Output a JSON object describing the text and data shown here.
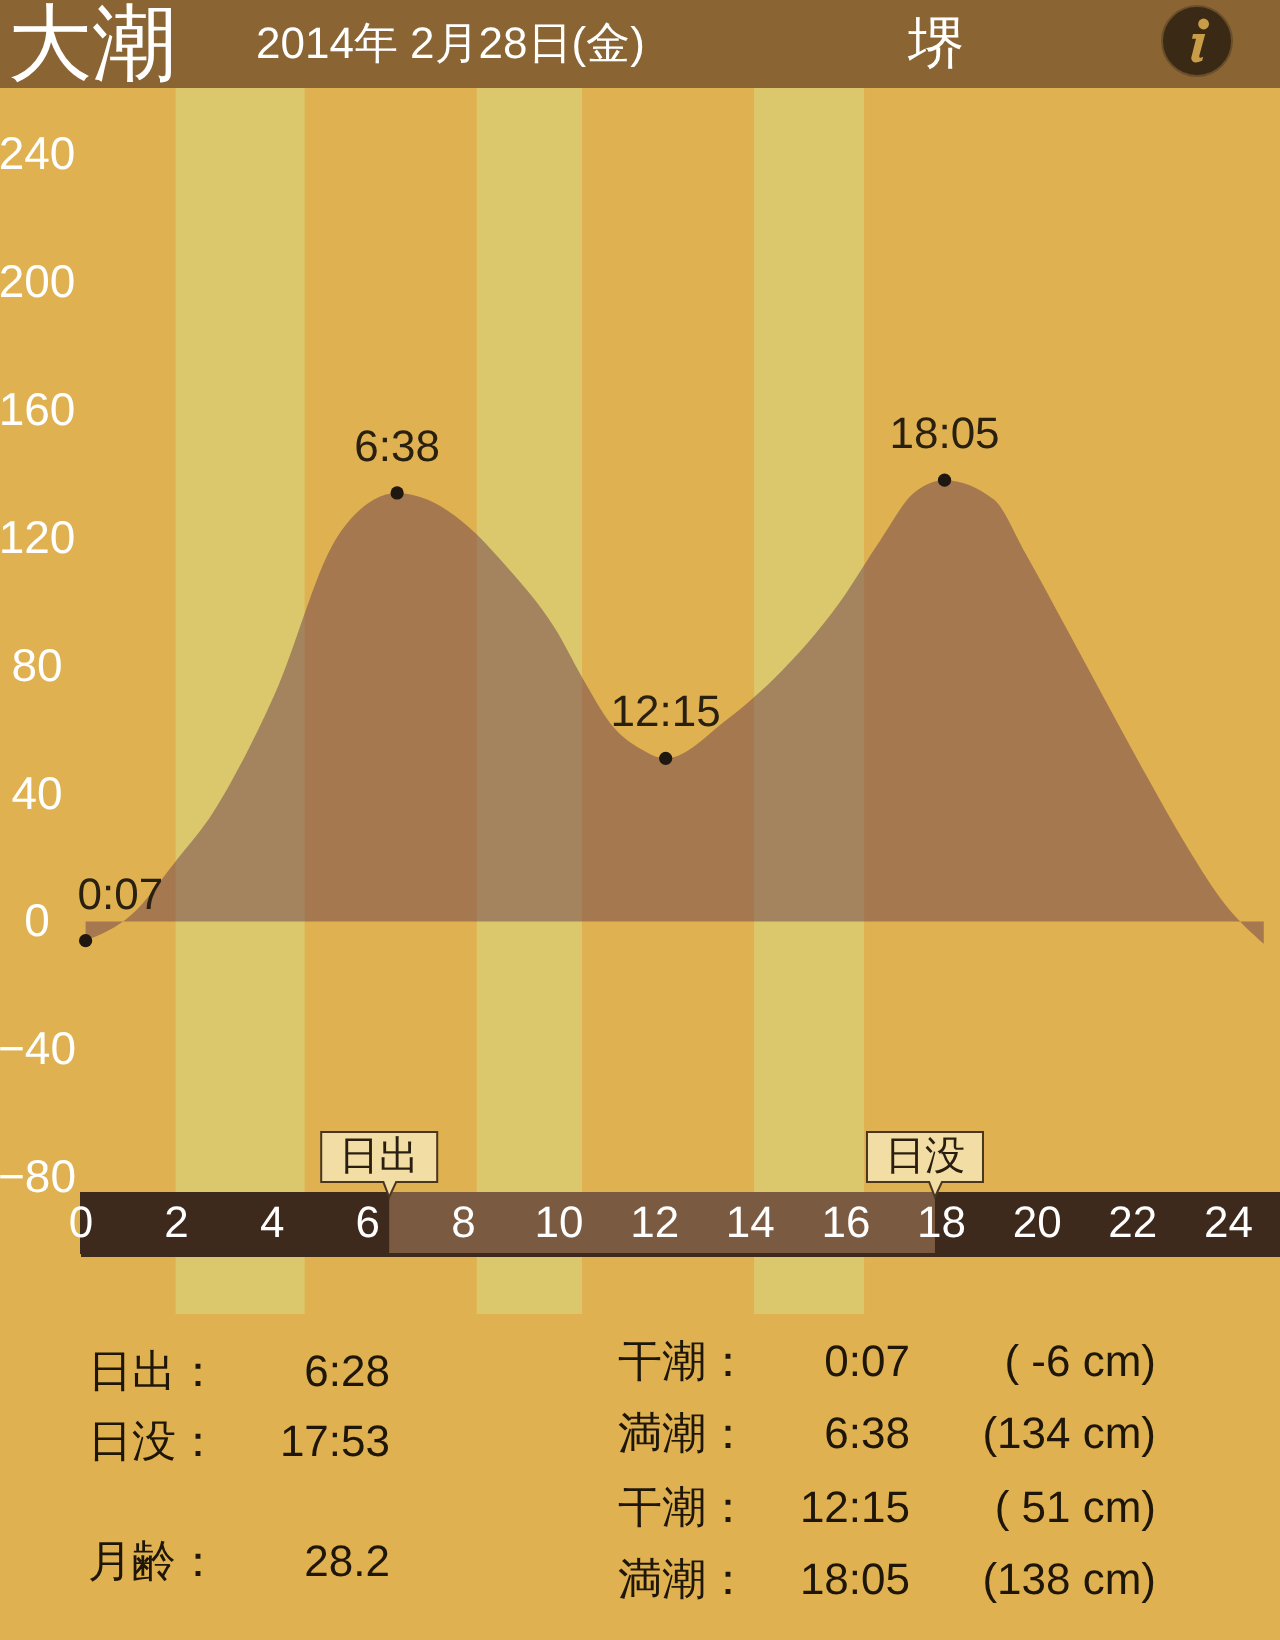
{
  "chart_data": {
    "type": "area",
    "title": "大潮",
    "subtitle": "2014年 2月28日(金)",
    "annotations": [
      "堺",
      "日出：",
      "6:28",
      "日没：",
      "17:53",
      "月齢：",
      "28.2",
      "干潮：",
      "0:07",
      "( -6 cm)",
      "満潮：",
      "6:38",
      "(134 cm)",
      "干潮：",
      "12:15",
      "( 51 cm)",
      "満潮：",
      "18:05",
      "(138 cm)",
      {
        "text": "0:07",
        "x": 0.117,
        "y": -6
      },
      {
        "text": "6:38",
        "x": 6.633,
        "y": 134
      },
      {
        "text": "12:15",
        "x": 12.25,
        "y": 51
      },
      {
        "text": "18:05",
        "x": 18.083,
        "y": 138
      },
      {
        "text": "日出",
        "x": 6.467,
        "y": -84
      },
      {
        "text": "日没",
        "x": 17.883,
        "y": -84
      }
    ],
    "xlim": [
      0,
      25.1
    ],
    "xticks": [
      0,
      2,
      4,
      6,
      8,
      10,
      12,
      14,
      16,
      18,
      20,
      22,
      24
    ],
    "ylim": [
      -104,
      240
    ],
    "yticks": [
      -80,
      -40,
      0,
      40,
      80,
      120,
      160,
      200,
      240
    ],
    "series": [
      {
        "color": "#6b4050",
        "x": [
          0.117,
          1.07,
          2.01,
          2.78,
          3.46,
          4.07,
          5.33,
          6.16,
          6.633,
          7.25,
          8.08,
          8.92,
          9.92,
          10.59,
          11.09,
          11.72,
          12.25,
          13.52,
          14.52,
          15.9,
          16.73,
          17.44,
          18.083,
          19.11,
          19.78,
          20.62,
          21.45,
          22.29,
          23.13,
          23.97,
          24.76
        ],
        "values": [
          -6,
          2,
          19,
          34,
          52,
          71,
          119,
          132,
          134,
          132,
          124,
          111,
          92,
          74,
          62,
          54,
          51,
          63,
          76,
          100,
          119,
          134,
          138,
          132,
          115,
          92,
          69,
          46,
          24,
          5,
          -7
        ]
      },
      {
        "type": "scatter",
        "marker": "circle",
        "color": "#1e1810",
        "x": [
          0.117,
          6.633,
          12.25,
          18.083
        ],
        "values": [
          -6,
          134,
          51,
          138
        ]
      }
    ],
    "bands": [
      {
        "axis": "x",
        "from": 6.467,
        "to": 17.883,
        "color": "#7a5a40"
      },
      {
        "axis": "x",
        "from": 2.0,
        "to": 4.7,
        "color": "#dcc86c"
      },
      {
        "axis": "x",
        "from": 8.3,
        "to": 10.5,
        "color": "#dcc86c"
      },
      {
        "axis": "x",
        "from": 14.1,
        "to": 16.4,
        "color": "#dcc86c"
      }
    ]
  }
}
